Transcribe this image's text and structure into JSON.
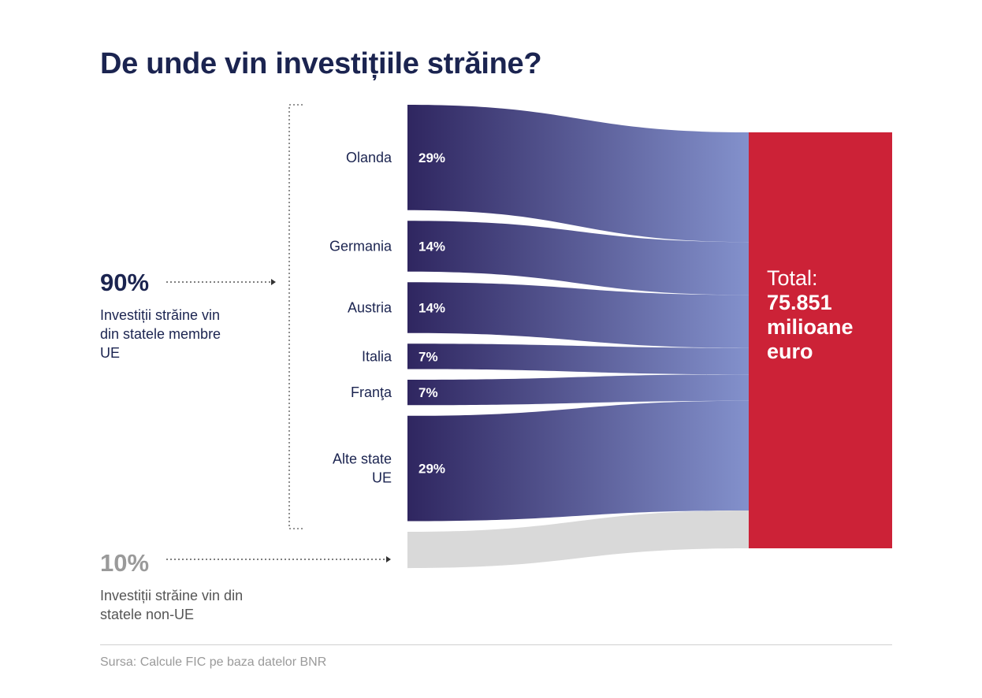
{
  "title": "De unde vin investițiile străine?",
  "groups": {
    "eu": {
      "percent": "90%",
      "description": "Investiții străine vin din statele membre UE"
    },
    "non_eu": {
      "percent": "10%",
      "description": "Investiții străine vin din statele non-UE"
    }
  },
  "total": {
    "label": "Total:",
    "value": "75.851",
    "unit_line1": "milioane",
    "unit_line2": "euro"
  },
  "source": "Sursa: Calcule FIC pe baza datelor BNR",
  "colors": {
    "flow_dark": "#2f2660",
    "flow_light": "#8391cc",
    "non_eu": "#d9d9d9",
    "total": "#cc2237",
    "title": "#1b2450"
  },
  "chart_data": {
    "type": "sankey",
    "title": "De unde vin investițiile străine?",
    "target": "Total: 75.851 milioane euro",
    "flows": [
      {
        "source_lines": [
          "Olanda"
        ],
        "label": "29%",
        "value": 29,
        "group": "eu"
      },
      {
        "source_lines": [
          "Germania"
        ],
        "label": "14%",
        "value": 14,
        "group": "eu"
      },
      {
        "source_lines": [
          "Austria"
        ],
        "label": "14%",
        "value": 14,
        "group": "eu"
      },
      {
        "source_lines": [
          "Italia"
        ],
        "label": "7%",
        "value": 7,
        "group": "eu"
      },
      {
        "source_lines": [
          "Franţa"
        ],
        "label": "7%",
        "value": 7,
        "group": "eu"
      },
      {
        "source_lines": [
          "Alte state",
          "UE"
        ],
        "label": "29%",
        "value": 29,
        "group": "eu"
      },
      {
        "source_lines": [],
        "label": "",
        "value": 10,
        "group": "non_eu"
      }
    ]
  }
}
